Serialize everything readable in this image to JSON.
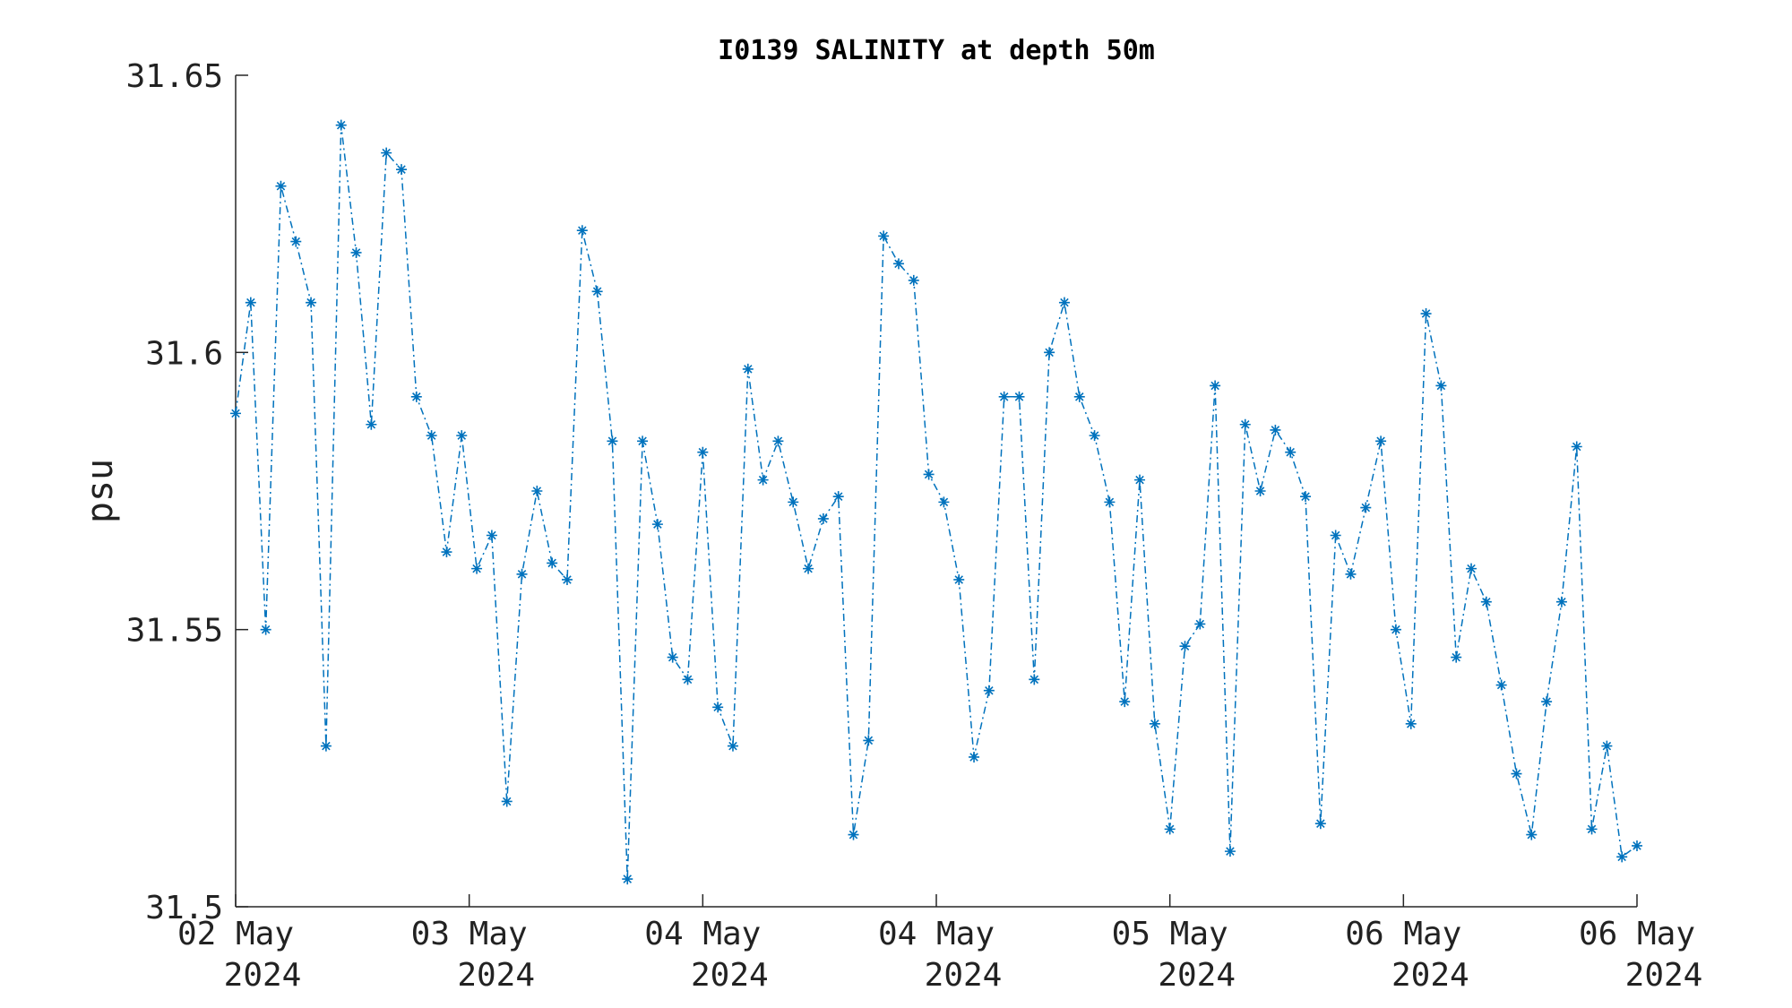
{
  "chart_data": {
    "type": "line",
    "title": "I0139 SALINITY at depth 50m",
    "xlabel": "",
    "ylabel": "psu",
    "ylim": [
      31.5,
      31.65
    ],
    "y_ticks": [
      "31.5",
      "31.55",
      "31.6",
      "31.65"
    ],
    "x_ticks": [
      {
        "day": "02 May",
        "year": "2024"
      },
      {
        "day": "03 May",
        "year": "2024"
      },
      {
        "day": "04 May",
        "year": "2024"
      },
      {
        "day": "04 May",
        "year": "2024"
      },
      {
        "day": "05 May",
        "year": "2024"
      },
      {
        "day": "06 May",
        "year": "2024"
      },
      {
        "day": "06 May",
        "year": "2024"
      }
    ],
    "line_color": "#0072BD",
    "line_style": "dash-dot",
    "marker": "asterisk",
    "grid": false,
    "series": [
      {
        "values": [
          31.589,
          31.609,
          31.55,
          31.63,
          31.62,
          31.609,
          31.529,
          31.641,
          31.618,
          31.587,
          31.636,
          31.633,
          31.592,
          31.585,
          31.564,
          31.585,
          31.561,
          31.567,
          31.519,
          31.56,
          31.575,
          31.562,
          31.559,
          31.622,
          31.611,
          31.584,
          31.505,
          31.584,
          31.569,
          31.545,
          31.541,
          31.582,
          31.536,
          31.529,
          31.597,
          31.577,
          31.584,
          31.573,
          31.561,
          31.57,
          31.574,
          31.513,
          31.53,
          31.621,
          31.616,
          31.613,
          31.578,
          31.573,
          31.559,
          31.527,
          31.539,
          31.592,
          31.592,
          31.541,
          31.6,
          31.609,
          31.592,
          31.585,
          31.573,
          31.537,
          31.577,
          31.533,
          31.514,
          31.547,
          31.551,
          31.594,
          31.51,
          31.587,
          31.575,
          31.586,
          31.582,
          31.574,
          31.515,
          31.567,
          31.56,
          31.572,
          31.584,
          31.55,
          31.533,
          31.607,
          31.594,
          31.545,
          31.561,
          31.555,
          31.54,
          31.524,
          31.513,
          31.537,
          31.555,
          31.583,
          31.514,
          31.529,
          31.509,
          31.511
        ]
      }
    ]
  }
}
